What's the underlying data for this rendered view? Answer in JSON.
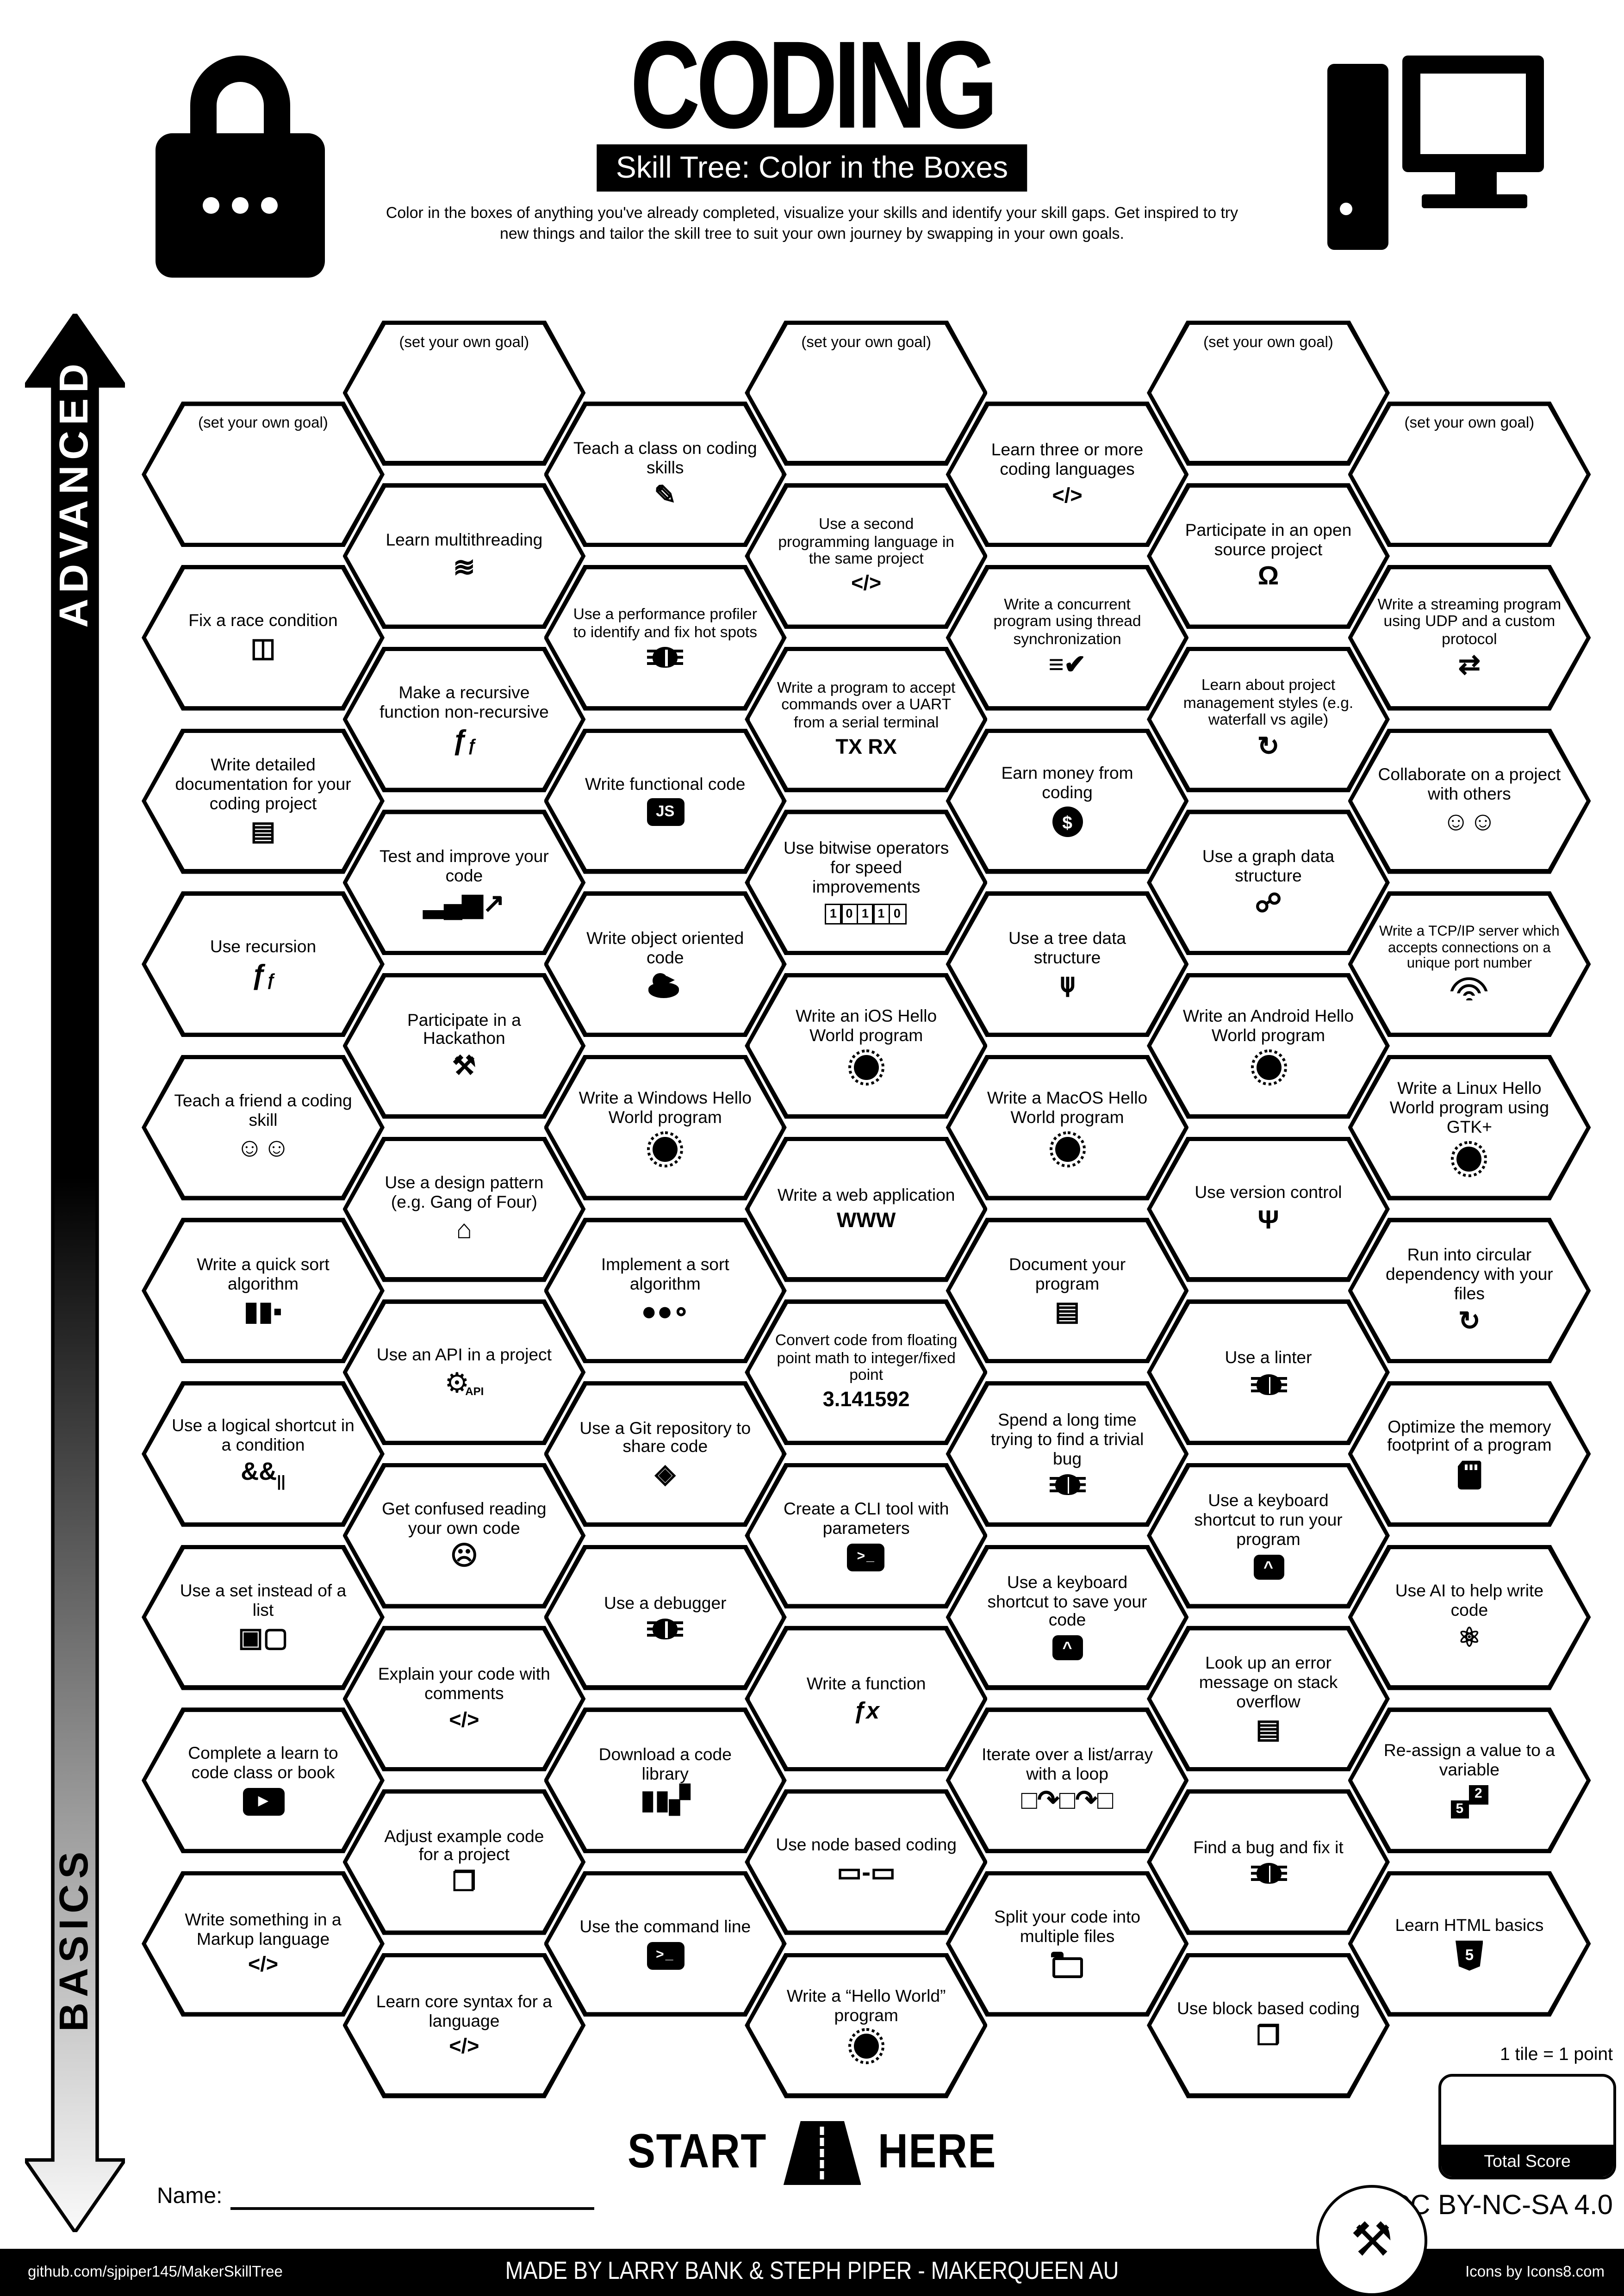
{
  "header": {
    "title": "CODING",
    "subtitle": "Skill Tree: Color in the Boxes",
    "description": "Color in the boxes of anything you've already completed, visualize your skills and identify your skill gaps.  Get inspired to try new things and tailor the skill tree to suit your own journey by swapping in your own goals."
  },
  "sidebar": {
    "top_label": "ADVANCED",
    "bottom_label": "BASICS"
  },
  "legend": {
    "start_left": "START",
    "start_right": "HERE",
    "name_label": "Name:",
    "tile_points": "1 tile = 1 point",
    "total_score": "Total Score"
  },
  "footer": {
    "license": "CC BY-NC-SA 4.0",
    "repo": "github.com/sjpiper145/MakerSkillTree",
    "credit": "MADE BY LARRY BANK & STEPH PIPER  -  MAKERQUEEN AU",
    "icons_credit": "Icons by Icons8.com"
  },
  "colors": {
    "ink": "#000000",
    "paper": "#ffffff"
  },
  "hexes": [
    {
      "c": 1,
      "r": 0,
      "label": "(set your own goal)",
      "icon": null
    },
    {
      "c": 3,
      "r": 0,
      "label": "(set your own goal)",
      "icon": null
    },
    {
      "c": 5,
      "r": 0,
      "label": "(set your own goal)",
      "icon": null
    },
    {
      "c": 0,
      "r": 1,
      "label": "(set your own goal)",
      "icon": null
    },
    {
      "c": 2,
      "r": 1,
      "label": "Teach a class on coding skills",
      "icon": "teacher-whiteboard"
    },
    {
      "c": 4,
      "r": 1,
      "label": "Learn three or more coding languages",
      "icon": "code-brackets",
      "t": "</>"
    },
    {
      "c": 6,
      "r": 1,
      "label": "(set your own goal)",
      "icon": null
    },
    {
      "c": 1,
      "r": 2,
      "label": "Learn multithreading",
      "icon": "threads-waves"
    },
    {
      "c": 3,
      "r": 2,
      "label": "Use a second programming language in the same project",
      "icon": "code-brackets",
      "t": "</>"
    },
    {
      "c": 5,
      "r": 2,
      "label": "Participate in an open source project",
      "icon": "open-source"
    },
    {
      "c": 0,
      "r": 3,
      "label": "Fix a race condition",
      "icon": "door-people"
    },
    {
      "c": 2,
      "r": 3,
      "label": "Use a performance profiler to identify and fix hot spots",
      "icon": "bug"
    },
    {
      "c": 4,
      "r": 3,
      "label": "Write a concurrent program using thread synchronization",
      "icon": "menu-check"
    },
    {
      "c": 6,
      "r": 3,
      "label": "Write a streaming program using UDP and a custom protocol",
      "icon": "file-transfer"
    },
    {
      "c": 1,
      "r": 4,
      "label": "Make a recursive function non-recursive",
      "icon": "nested-functions"
    },
    {
      "c": 3,
      "r": 4,
      "label": "Write a program to accept commands over a UART from a serial terminal",
      "icon": "uart-tx-rx",
      "t": "TX RX"
    },
    {
      "c": 5,
      "r": 4,
      "label": "Learn about project management styles (e.g. waterfall vs agile)",
      "icon": "cycle-arrow"
    },
    {
      "c": 0,
      "r": 5,
      "label": "Write detailed documentation for your coding project",
      "icon": "document"
    },
    {
      "c": 2,
      "r": 5,
      "label": "Write functional code",
      "icon": "js-badge",
      "t": "JS"
    },
    {
      "c": 4,
      "r": 5,
      "label": "Earn money from coding",
      "icon": "money-bag",
      "t": "$"
    },
    {
      "c": 6,
      "r": 5,
      "label": "Collaborate on a project with others",
      "icon": "pair-programming"
    },
    {
      "c": 1,
      "r": 6,
      "label": "Test and improve your code",
      "icon": "chart-up"
    },
    {
      "c": 3,
      "r": 6,
      "label": "Use bitwise operators for speed improvements",
      "icon": "binary-bits",
      "t": "10110"
    },
    {
      "c": 5,
      "r": 6,
      "label": "Use a graph data structure",
      "icon": "graph-nodes"
    },
    {
      "c": 0,
      "r": 7,
      "label": "Use recursion",
      "icon": "nested-functions"
    },
    {
      "c": 2,
      "r": 7,
      "label": "Write object oriented code",
      "icon": "rubber-duck"
    },
    {
      "c": 4,
      "r": 7,
      "label": "Use a tree data structure",
      "icon": "tree-nodes"
    },
    {
      "c": 6,
      "r": 7,
      "label": "Write a TCP/IP server which accepts connections on a unique port number",
      "icon": "wifi"
    },
    {
      "c": 1,
      "r": 8,
      "label": "Participate in a Hackathon",
      "icon": "tools"
    },
    {
      "c": 3,
      "r": 8,
      "label": "Write an iOS Hello World program",
      "icon": "globe"
    },
    {
      "c": 5,
      "r": 8,
      "label": "Write an Android Hello World program",
      "icon": "globe"
    },
    {
      "c": 0,
      "r": 9,
      "label": "Teach a friend a coding skill",
      "icon": "pair-programming"
    },
    {
      "c": 2,
      "r": 9,
      "label": "Write a Windows Hello World program",
      "icon": "globe"
    },
    {
      "c": 4,
      "r": 9,
      "label": "Write a MacOS Hello World program",
      "icon": "globe"
    },
    {
      "c": 6,
      "r": 9,
      "label": "Write a Linux Hello World program using GTK+",
      "icon": "globe"
    },
    {
      "c": 1,
      "r": 10,
      "label": "Use a design pattern (e.g. Gang of Four)",
      "icon": "factory"
    },
    {
      "c": 3,
      "r": 10,
      "label": "Write a web application",
      "icon": "www",
      "t": "WWW"
    },
    {
      "c": 5,
      "r": 10,
      "label": "Use version control",
      "icon": "git-branch"
    },
    {
      "c": 0,
      "r": 11,
      "label": "Write a quick sort algorithm",
      "icon": "sorted-bars"
    },
    {
      "c": 2,
      "r": 11,
      "label": "Implement a sort algorithm",
      "icon": "bubbles"
    },
    {
      "c": 4,
      "r": 11,
      "label": "Document your program",
      "icon": "document"
    },
    {
      "c": 6,
      "r": 11,
      "label": "Run into circular dependency with your files",
      "icon": "sync-arrows"
    },
    {
      "c": 1,
      "r": 12,
      "label": "Use an API in a project",
      "icon": "gear-api",
      "t": "API"
    },
    {
      "c": 3,
      "r": 12,
      "label": "Convert code from floating point math to integer/fixed point",
      "icon": "pi-number",
      "t": "3.141592"
    },
    {
      "c": 5,
      "r": 12,
      "label": "Use a linter",
      "icon": "bug"
    },
    {
      "c": 0,
      "r": 13,
      "label": "Use a logical shortcut in a condition",
      "icon": "logical-operators",
      "t": "&&"
    },
    {
      "c": 2,
      "r": 13,
      "label": "Use a Git repository to share code",
      "icon": "git-diamond"
    },
    {
      "c": 4,
      "r": 13,
      "label": "Spend a long time trying to find a trivial bug",
      "icon": "bug"
    },
    {
      "c": 6,
      "r": 13,
      "label": "Optimize the memory footprint of a program",
      "icon": "memory-card"
    },
    {
      "c": 1,
      "r": 14,
      "label": "Get confused reading your own code",
      "icon": "facepalm"
    },
    {
      "c": 3,
      "r": 14,
      "label": "Create a CLI tool with parameters",
      "icon": "terminal",
      "t": ">_"
    },
    {
      "c": 5,
      "r": 14,
      "label": "Use a keyboard shortcut to run your program",
      "icon": "keycap",
      "t": "^"
    },
    {
      "c": 0,
      "r": 15,
      "label": "Use a set instead of a list",
      "icon": "set-blocks"
    },
    {
      "c": 2,
      "r": 15,
      "label": "Use a debugger",
      "icon": "bug"
    },
    {
      "c": 4,
      "r": 15,
      "label": "Use a keyboard shortcut to save your code",
      "icon": "keycap",
      "t": "^"
    },
    {
      "c": 6,
      "r": 15,
      "label": "Use AI to help write code",
      "icon": "ai-brain"
    },
    {
      "c": 1,
      "r": 16,
      "label": "Explain your code with comments",
      "icon": "code-brackets",
      "t": "</>"
    },
    {
      "c": 3,
      "r": 16,
      "label": "Write a function",
      "icon": "fx",
      "t": "ƒx"
    },
    {
      "c": 5,
      "r": 16,
      "label": "Look up an error message on stack overflow",
      "icon": "stack-overflow"
    },
    {
      "c": 0,
      "r": 17,
      "label": "Complete a learn to code class or book",
      "icon": "video-class",
      "t": "▶"
    },
    {
      "c": 2,
      "r": 17,
      "label": "Download a code library",
      "icon": "bookshelf"
    },
    {
      "c": 4,
      "r": 17,
      "label": "Iterate over a list/array with a loop",
      "icon": "loop-squares"
    },
    {
      "c": 6,
      "r": 17,
      "label": "Re-assign a value to a variable",
      "icon": "value-swap"
    },
    {
      "c": 1,
      "r": 18,
      "label": "Adjust example code for a project",
      "icon": "copy-adjust"
    },
    {
      "c": 3,
      "r": 18,
      "label": "Use node based coding",
      "icon": "nodes"
    },
    {
      "c": 5,
      "r": 18,
      "label": "Find a bug and fix it",
      "icon": "bug"
    },
    {
      "c": 0,
      "r": 19,
      "label": "Write something in a Markup language",
      "icon": "code-brackets",
      "t": "</>"
    },
    {
      "c": 2,
      "r": 19,
      "label": "Use the command line",
      "icon": "terminal",
      "t": ">_"
    },
    {
      "c": 4,
      "r": 19,
      "label": "Split your code into multiple files",
      "icon": "folder"
    },
    {
      "c": 6,
      "r": 19,
      "label": "Learn HTML basics",
      "icon": "html5-shield",
      "t": "5"
    },
    {
      "c": 1,
      "r": 20,
      "label": "Learn core syntax for a language",
      "icon": "code-brackets",
      "t": "</>"
    },
    {
      "c": 3,
      "r": 20,
      "label": "Write a “Hello World” program",
      "icon": "globe"
    },
    {
      "c": 5,
      "r": 20,
      "label": "Use block based coding",
      "icon": "blocks"
    }
  ]
}
